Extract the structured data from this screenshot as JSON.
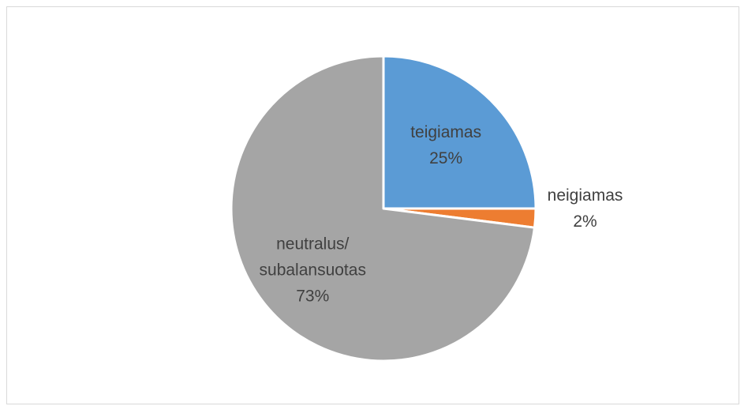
{
  "chart_data": {
    "type": "pie",
    "title": "",
    "start_angle_deg": 0,
    "direction": "clockwise",
    "slices": [
      {
        "name": "teigiamas",
        "value": 25,
        "label_line1": "teigiamas",
        "label_line2": "",
        "pct_label": "25%",
        "color": "#5b9bd5",
        "label_side": "inside"
      },
      {
        "name": "neigiamas",
        "value": 2,
        "label_line1": "neigiamas",
        "label_line2": "",
        "pct_label": "2%",
        "color": "#ed7d31",
        "label_side": "outside"
      },
      {
        "name": "neutralus/ subalansuotas",
        "value": 73,
        "label_line1": "neutralus/",
        "label_line2": "subalansuotas",
        "pct_label": "73%",
        "color": "#a5a5a5",
        "label_side": "inside"
      }
    ]
  }
}
